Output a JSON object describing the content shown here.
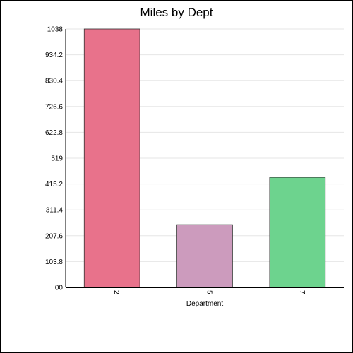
{
  "chart_data": {
    "type": "bar",
    "title": "Miles by Dept",
    "xlabel": "Department",
    "ylabel": "",
    "categories": [
      "2",
      "5",
      "7"
    ],
    "values": [
      1038,
      252,
      442
    ],
    "bar_colors": [
      "#e8728b",
      "#cc9bbd",
      "#6dd38e"
    ],
    "ylim": [
      0,
      1038
    ],
    "yticks": [
      "00",
      "103.8",
      "207.6",
      "311.4",
      "415.2",
      "519",
      "622.8",
      "726.6",
      "830.4",
      "934.2",
      "1038"
    ],
    "ytick_values": [
      0,
      103.8,
      207.6,
      311.4,
      415.2,
      519,
      622.8,
      726.6,
      830.4,
      934.2,
      1038
    ],
    "grid": true,
    "legend": "none"
  }
}
